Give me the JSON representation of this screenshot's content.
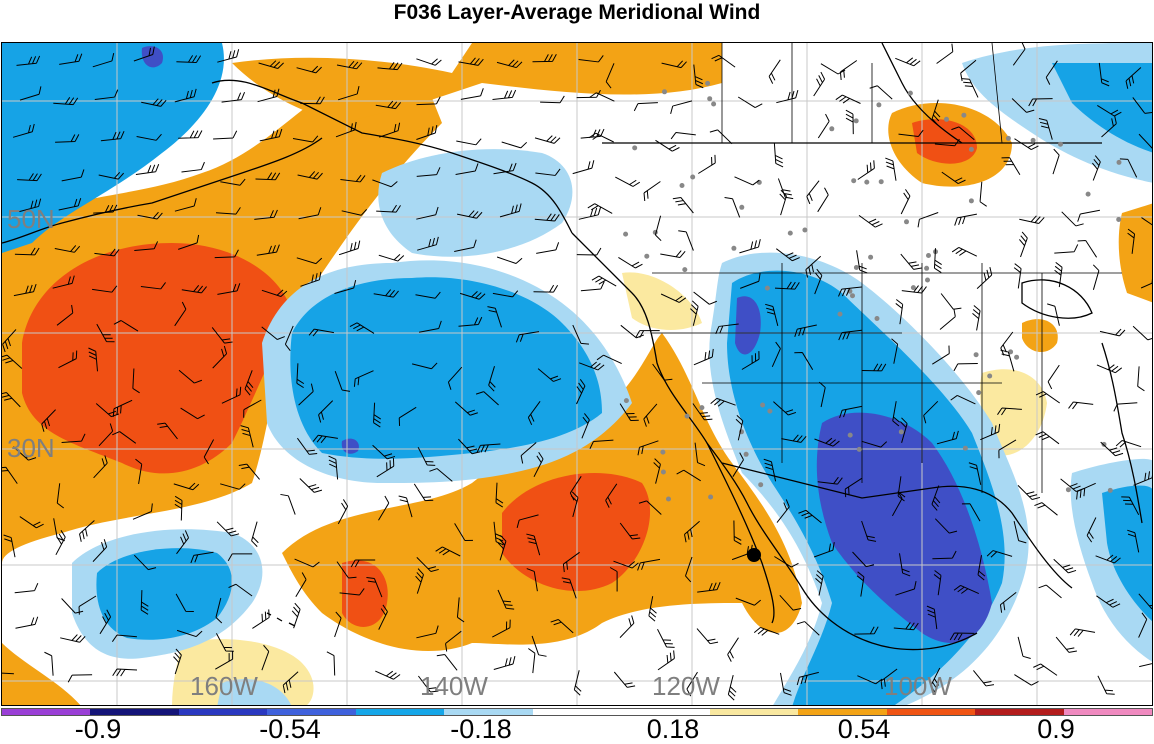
{
  "title": "F036 Layer-Average Meridional Wind",
  "lat_labels": [
    "50N",
    "30N"
  ],
  "lon_labels": [
    "160W",
    "140W",
    "120W",
    "100W"
  ],
  "colorbar": {
    "colors": [
      "#9a3fd6",
      "#141478",
      "#2a38c0",
      "#3f61dc",
      "#15a6e8",
      "#a9d9f3",
      "#ffffff",
      "#ffffff",
      "#f9e8a0",
      "#f3a315",
      "#f05414",
      "#b31c1c",
      "#f08ac0"
    ],
    "labels": [
      "-0.9",
      "-0.54",
      "-0.18",
      "0.18",
      "0.54",
      "0.9"
    ]
  },
  "palette": {
    "dark_blue": "#3f4fc6",
    "blue": "#16a3e6",
    "light_blue": "#a9d9f3",
    "light_yellow": "#fbe9a0",
    "orange": "#f3a315",
    "red_orange": "#f05014"
  }
}
